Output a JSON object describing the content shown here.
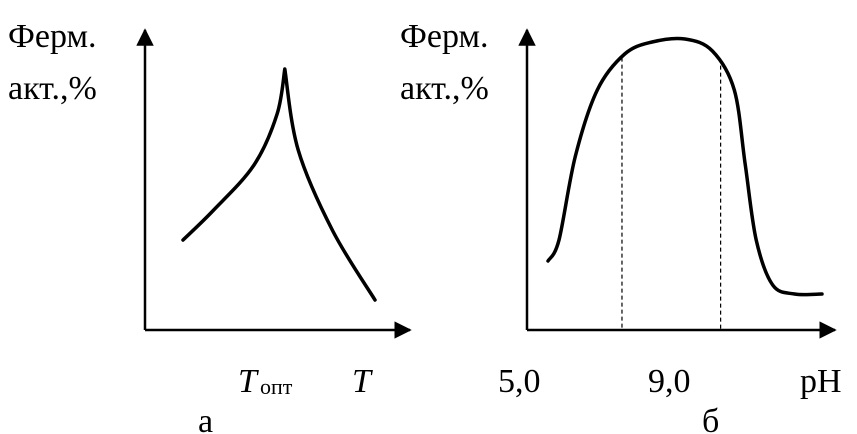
{
  "chart_data": [
    {
      "type": "line",
      "panel_label": "а",
      "ylabel_line1": "Ферм.",
      "ylabel_line2": "акт.,%",
      "xlabel": "T",
      "x_tick_main": "T",
      "x_tick_sub": "опт",
      "series": [
        {
          "x": [
            0.0,
            0.16,
            0.37,
            0.49,
            0.53,
            0.6,
            0.78,
            1.0
          ],
          "y": [
            0.3,
            0.4,
            0.55,
            0.72,
            0.87,
            0.6,
            0.33,
            0.1
          ]
        }
      ],
      "peak_x": 0.53
    },
    {
      "type": "line",
      "panel_label": "б",
      "ylabel_line1": "Ферм.",
      "ylabel_line2": "акт.,%",
      "xlabel": "pH",
      "x_ticks": [
        "5,0",
        "9,0"
      ],
      "series": [
        {
          "x": [
            0.0,
            0.04,
            0.1,
            0.18,
            0.28,
            0.38,
            0.5,
            0.6,
            0.68,
            0.72,
            0.76,
            0.82,
            0.9,
            1.0
          ],
          "y": [
            0.23,
            0.3,
            0.58,
            0.8,
            0.92,
            0.96,
            0.97,
            0.93,
            0.8,
            0.55,
            0.3,
            0.15,
            0.12,
            0.12
          ]
        }
      ],
      "marker_lines_x": [
        0.27,
        0.63
      ]
    }
  ]
}
